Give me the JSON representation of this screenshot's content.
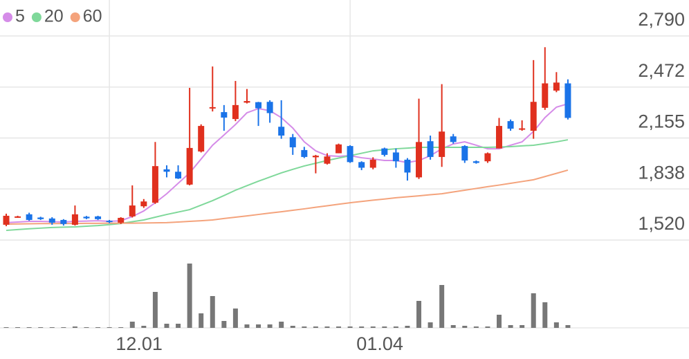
{
  "chart_data": [
    {
      "type": "candlestick",
      "categories": [
        null,
        null,
        null,
        null,
        null,
        null,
        null,
        null,
        null,
        "12.01",
        null,
        null,
        null,
        null,
        null,
        null,
        null,
        null,
        null,
        null,
        null,
        null,
        null,
        null,
        null,
        null,
        null,
        null,
        null,
        null,
        "01.04",
        null,
        null,
        null,
        null,
        null,
        null,
        null,
        null,
        null,
        null,
        null,
        null,
        null,
        null,
        null,
        null,
        null,
        null,
        null
      ],
      "open": [
        1615,
        1662,
        1680,
        1660,
        1654,
        1645,
        1615,
        1665,
        1667,
        1640,
        1628,
        1667,
        1730,
        1752,
        1960,
        1945,
        1865,
        2071,
        2340,
        2316,
        2273,
        2375,
        2378,
        2380,
        2225,
        2160,
        2080,
        2035,
        1995,
        2060,
        2105,
        2005,
        1970,
        2090,
        2065,
        2020,
        1910,
        2135,
        2037,
        2165,
        2105,
        2010,
        2010,
        2090,
        2260,
        2210,
        2200,
        2343,
        2450,
        2495
      ],
      "high": [
        1684,
        1671,
        1690,
        1665,
        1662,
        1650,
        1735,
        1670,
        1671,
        1645,
        1662,
        1860,
        1775,
        2130,
        1985,
        1985,
        2467,
        2240,
        2600,
        2360,
        2510,
        2460,
        2380,
        2390,
        2390,
        2180,
        2100,
        2050,
        2060,
        2120,
        2110,
        2010,
        2035,
        2095,
        2090,
        2030,
        2400,
        2170,
        2490,
        2180,
        2110,
        2015,
        2065,
        2280,
        2270,
        2265,
        2640,
        2720,
        2565,
        2520
      ],
      "low": [
        1606,
        1658,
        1640,
        1645,
        1615,
        1610,
        1610,
        1650,
        1645,
        1625,
        1620,
        1660,
        1720,
        1745,
        1910,
        1900,
        1860,
        2065,
        2320,
        2200,
        2260,
        2370,
        2230,
        2250,
        2150,
        2050,
        2030,
        1935,
        1990,
        2060,
        2000,
        1955,
        1960,
        2040,
        1970,
        1890,
        1900,
        2020,
        1975,
        2120,
        2000,
        1995,
        2000,
        2090,
        2200,
        2200,
        2150,
        2330,
        2440,
        2270
      ],
      "close": [
        1671,
        1667,
        1645,
        1650,
        1628,
        1620,
        1680,
        1655,
        1650,
        1635,
        1658,
        1735,
        1760,
        1980,
        1945,
        1903,
        2093,
        2230,
        2347,
        2282,
        2360,
        2385,
        2340,
        2310,
        2170,
        2097,
        2037,
        2045,
        2040,
        2115,
        2005,
        1970,
        2020,
        2050,
        2010,
        1940,
        2130,
        2037,
        2195,
        2130,
        2015,
        2000,
        2060,
        2230,
        2213,
        2215,
        2380,
        2495,
        2500,
        2280
      ],
      "up_color": "#e0301e",
      "down_color": "#1a73e8",
      "lines": [
        {
          "name": "5",
          "color": "#d58ce8",
          "values": [
            1628,
            1632,
            1636,
            1636,
            1634,
            1632,
            1636,
            1638,
            1640,
            1636,
            1640,
            1666,
            1701,
            1752,
            1808,
            1873,
            1938,
            2024,
            2110,
            2174,
            2239,
            2312,
            2338,
            2325,
            2282,
            2217,
            2131,
            2075,
            2045,
            2041,
            2045,
            2032,
            2024,
            2015,
            2015,
            2002,
            2015,
            2045,
            2088,
            2118,
            2131,
            2110,
            2088,
            2088,
            2110,
            2131,
            2196,
            2282,
            2347,
            2368
          ]
        },
        {
          "name": "20",
          "color": "#7fd89a",
          "values": [
            1580,
            1585,
            1590,
            1594,
            1598,
            1600,
            1602,
            1606,
            1610,
            1616,
            1623,
            1634,
            1645,
            1662,
            1679,
            1694,
            1709,
            1737,
            1765,
            1797,
            1830,
            1858,
            1886,
            1912,
            1938,
            1960,
            1981,
            1998,
            2015,
            2030,
            2045,
            2060,
            2075,
            2082,
            2088,
            2092,
            2097,
            2097,
            2097,
            2097,
            2097,
            2097,
            2097,
            2099,
            2101,
            2106,
            2110,
            2120,
            2131,
            2144
          ]
        },
        {
          "name": "60",
          "color": "#f4a37c",
          "values": [
            1619,
            1620,
            1621,
            1622,
            1622,
            1623,
            1623,
            1624,
            1624,
            1625,
            1625,
            1625,
            1626,
            1627,
            1628,
            1632,
            1636,
            1640,
            1645,
            1654,
            1662,
            1670,
            1679,
            1688,
            1696,
            1705,
            1714,
            1724,
            1733,
            1743,
            1752,
            1760,
            1768,
            1775,
            1783,
            1789,
            1795,
            1802,
            1808,
            1819,
            1830,
            1841,
            1852,
            1862,
            1873,
            1884,
            1895,
            1915,
            1935,
            1955
          ]
        }
      ],
      "ylim": [
        1520,
        2790
      ],
      "yticks": [
        {
          "value": 2790,
          "label": "2,790"
        },
        {
          "value": 2472,
          "label": "2,472"
        },
        {
          "value": 2155,
          "label": "2,155"
        },
        {
          "value": 1838,
          "label": "1,838"
        },
        {
          "value": 1520,
          "label": "1,520"
        }
      ],
      "grid": true
    },
    {
      "type": "bar",
      "color": "#777777",
      "values": [
        1,
        1,
        1,
        1,
        1,
        1,
        2,
        1,
        1,
        1,
        1,
        9,
        3,
        52,
        6,
        6,
        93,
        21,
        46,
        10,
        28,
        5,
        5,
        5,
        9,
        3,
        2,
        2,
        2,
        2,
        2,
        2,
        2,
        2,
        2,
        3,
        39,
        8,
        62,
        4,
        3,
        2,
        2,
        19,
        4,
        4,
        50,
        37,
        8,
        4
      ],
      "ylim": [
        0,
        100
      ]
    }
  ]
}
